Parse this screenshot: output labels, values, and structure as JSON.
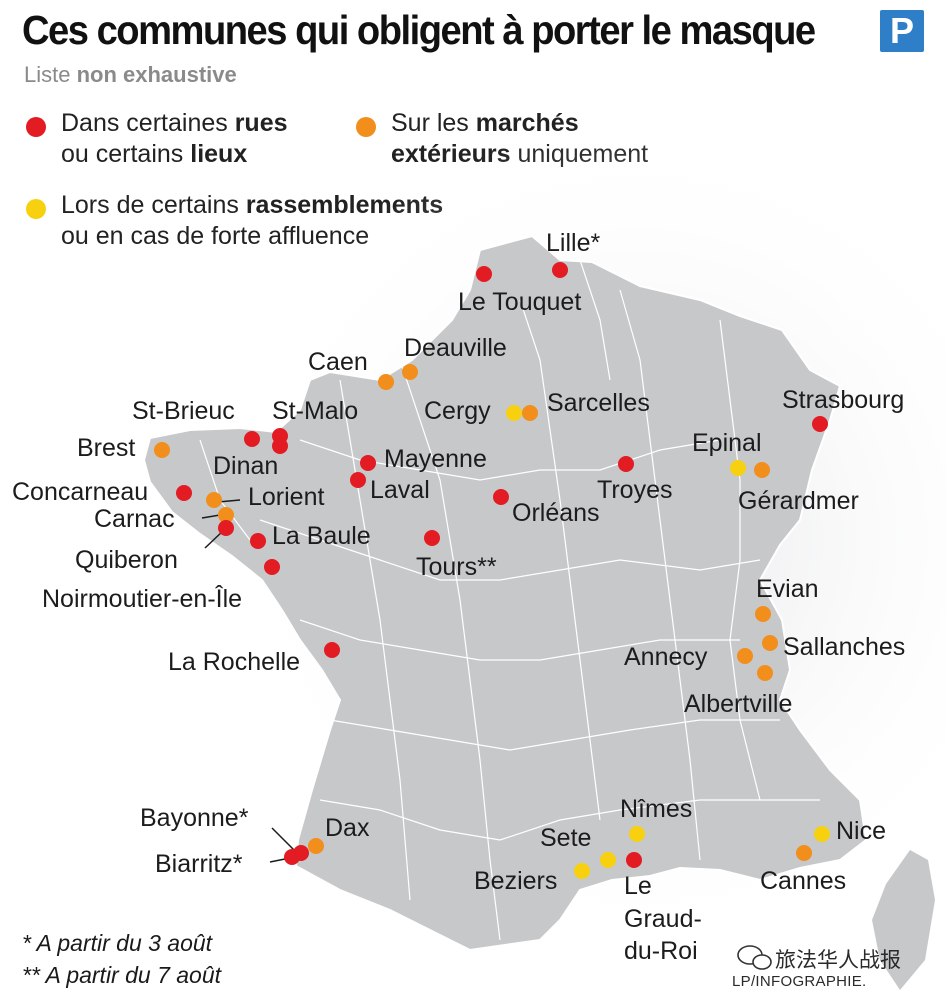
{
  "header": {
    "title": "Ces communes qui obligent à porter le masque",
    "logo_letter": "P",
    "subtitle_plain": "Liste ",
    "subtitle_bold": "non exhaustive"
  },
  "legend": {
    "red": {
      "color": "#e31b23",
      "line1_plain": "Dans certaines ",
      "line1_bold": "rues",
      "line2_plain": "ou certains ",
      "line2_bold": "lieux"
    },
    "orange": {
      "color": "#f28e1c",
      "line1_plain": "Sur les ",
      "line1_bold": "marchés",
      "line2_bold": "extérieurs",
      "line2_plain": " uniquement"
    },
    "yellow": {
      "color": "#f7d10f",
      "line1_plain": "Lors de certains ",
      "line1_bold": "rassemblements",
      "line2_plain": "ou en cas de forte affluence"
    }
  },
  "cities": {
    "lille": "Lille*",
    "le_touquet": "Le Touquet",
    "deauville": "Deauville",
    "caen": "Caen",
    "st_brieuc": "St-Brieuc",
    "st_malo": "St-Malo",
    "cergy": "Cergy",
    "sarcelles": "Sarcelles",
    "strasbourg": "Strasbourg",
    "brest": "Brest",
    "dinan": "Dinan",
    "mayenne": "Mayenne",
    "epinal": "Epinal",
    "concarneau": "Concarneau",
    "lorient": "Lorient",
    "laval": "Laval",
    "troyes": "Troyes",
    "gerardmer": "Gérardmer",
    "carnac": "Carnac",
    "orleans": "Orléans",
    "la_baule": "La Baule",
    "quiberon": "Quiberon",
    "tours": "Tours**",
    "noirmoutier": "Noirmoutier-en-Île",
    "evian": "Evian",
    "sallanches": "Sallanches",
    "annecy": "Annecy",
    "la_rochelle": "La Rochelle",
    "albertville": "Albertville",
    "nimes": "Nîmes",
    "bayonne": "Bayonne*",
    "dax": "Dax",
    "sete": "Sete",
    "nice": "Nice",
    "biarritz": "Biarritz*",
    "beziers": "Beziers",
    "le_graud_du_roi_1": "Le",
    "le_graud_du_roi_2": "Graud-",
    "le_graud_du_roi_3": "du-Roi",
    "cannes": "Cannes"
  },
  "footnotes": {
    "note1": "* A partir du 3 août",
    "note2": "** A partir du 7 août"
  },
  "credits": {
    "watermark": "旅法华人战报",
    "source": "LP/INFOGRAPHIE."
  }
}
